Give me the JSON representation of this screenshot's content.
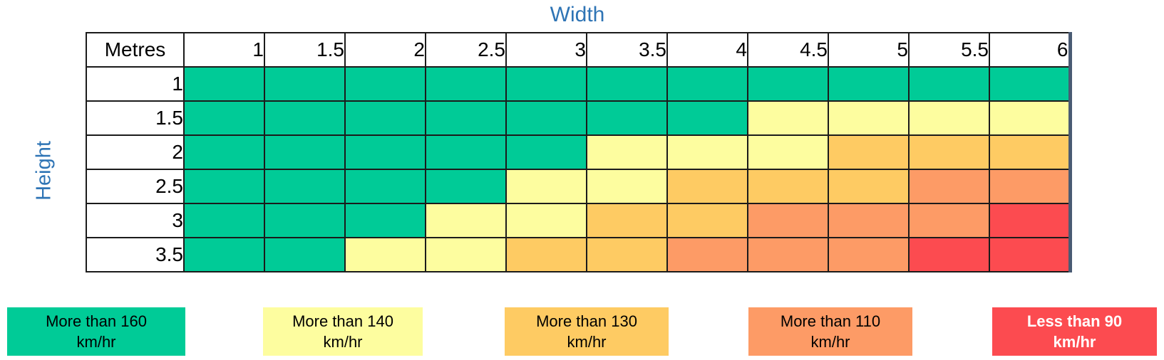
{
  "labels": {
    "width": "Width",
    "height": "Height",
    "metres": "Metres"
  },
  "chart_data": {
    "type": "heatmap",
    "xlabel": "Width",
    "ylabel": "Height",
    "units_label": "Metres",
    "columns": [
      "1",
      "1.5",
      "2",
      "2.5",
      "3",
      "3.5",
      "4",
      "4.5",
      "5",
      "5.5",
      "6"
    ],
    "rows": [
      {
        "label": "1",
        "cells": [
          "green",
          "green",
          "green",
          "green",
          "green",
          "green",
          "green",
          "green",
          "green",
          "green",
          "green"
        ]
      },
      {
        "label": "1.5",
        "cells": [
          "green",
          "green",
          "green",
          "green",
          "green",
          "green",
          "green",
          "yellow",
          "yellow",
          "yellow",
          "yellow"
        ]
      },
      {
        "label": "2",
        "cells": [
          "green",
          "green",
          "green",
          "green",
          "green",
          "yellow",
          "yellow",
          "yellow",
          "amber",
          "amber",
          "amber"
        ]
      },
      {
        "label": "2.5",
        "cells": [
          "green",
          "green",
          "green",
          "green",
          "yellow",
          "yellow",
          "amber",
          "amber",
          "amber",
          "salmon",
          "salmon"
        ]
      },
      {
        "label": "3",
        "cells": [
          "green",
          "green",
          "green",
          "yellow",
          "yellow",
          "amber",
          "amber",
          "salmon",
          "salmon",
          "salmon",
          "red"
        ]
      },
      {
        "label": "3.5",
        "cells": [
          "green",
          "green",
          "yellow",
          "yellow",
          "amber",
          "amber",
          "salmon",
          "salmon",
          "salmon",
          "red",
          "red"
        ]
      }
    ],
    "categories": {
      "green": "More than 160 km/hr",
      "yellow": "More than 140 km/hr",
      "amber": "More than 130 km/hr",
      "salmon": "More than 110 km/hr",
      "red": "Less than 90 km/hr"
    },
    "colors": {
      "green": "#00CB97",
      "yellow": "#FDFD9F",
      "amber": "#FECB63",
      "salmon": "#FD9B66",
      "red": "#FC4B50",
      "heading_blue": "#2E74B5",
      "table_right_border": "#4A5B73"
    },
    "legend": [
      {
        "key": "green",
        "line1": "More than 160",
        "line2": "km/hr",
        "text_color": "#000000",
        "bold": false
      },
      {
        "key": "yellow",
        "line1": "More than 140",
        "line2": "km/hr",
        "text_color": "#000000",
        "bold": false
      },
      {
        "key": "amber",
        "line1": "More than 130",
        "line2": "km/hr",
        "text_color": "#000000",
        "bold": false
      },
      {
        "key": "salmon",
        "line1": "More than 110",
        "line2": "km/hr",
        "text_color": "#000000",
        "bold": false
      },
      {
        "key": "red",
        "line1": "Less than 90",
        "line2": "km/hr",
        "text_color": "#FFFFFF",
        "bold": true
      }
    ]
  }
}
